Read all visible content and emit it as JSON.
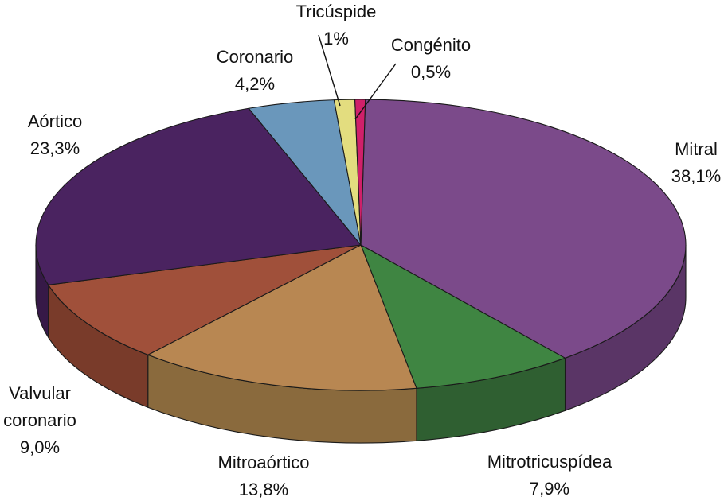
{
  "chart_data": {
    "type": "pie",
    "title": "",
    "slices": [
      {
        "name": "Mitral",
        "value": 38.1,
        "value_label": "38,1%",
        "color": "#7b4a8a",
        "side_color": "#5a3566"
      },
      {
        "name": "Mitrotricuspídea",
        "value": 7.9,
        "value_label": "7,9%",
        "color": "#3f8542",
        "side_color": "#2f5f31"
      },
      {
        "name": "Mitroaórtico",
        "value": 13.8,
        "value_label": "13,8%",
        "color": "#b88752",
        "side_color": "#8a6a3d"
      },
      {
        "name": "Valvular coronario",
        "value": 9.0,
        "value_label": "9,0%",
        "color": "#a0503a",
        "side_color": "#793b2a"
      },
      {
        "name": "Aórtico",
        "value": 23.3,
        "value_label": "23,3%",
        "color": "#4a2360",
        "side_color": "#361947"
      },
      {
        "name": "Coronario",
        "value": 4.2,
        "value_label": "4,2%",
        "color": "#6a97bb",
        "side_color": "#4d7390"
      },
      {
        "name": "Tricúspide",
        "value": 1.0,
        "value_label": "1%",
        "color": "#e3dd7f",
        "side_color": "#aca65a"
      },
      {
        "name": "Congénito",
        "value": 0.5,
        "value_label": "0,5%",
        "color": "#d0206a",
        "side_color": "#9a1650"
      }
    ]
  }
}
